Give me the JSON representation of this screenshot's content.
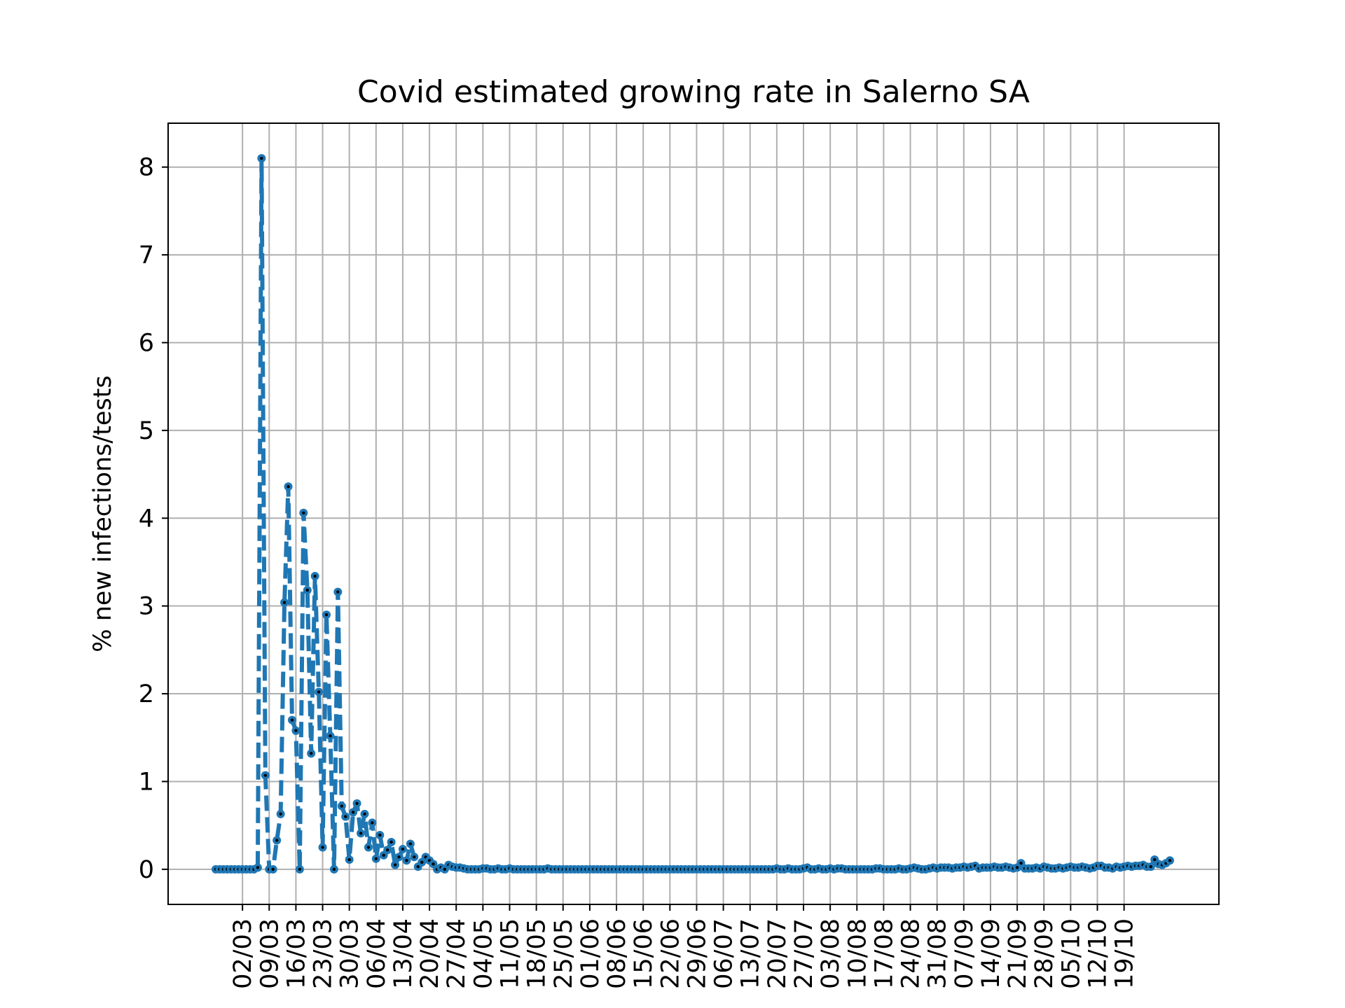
{
  "chart_data": {
    "type": "line",
    "title": "Covid estimated growing rate in Salerno SA",
    "xlabel": "",
    "ylabel": "% new infections/tests",
    "ylim": [
      -0.4,
      8.5
    ],
    "y_ticks": [
      0,
      1,
      2,
      3,
      4,
      5,
      6,
      7,
      8
    ],
    "x_tick_labels": [
      "02/03",
      "09/03",
      "16/03",
      "23/03",
      "30/03",
      "06/04",
      "13/04",
      "20/04",
      "27/04",
      "04/05",
      "11/05",
      "18/05",
      "25/05",
      "01/06",
      "08/06",
      "15/06",
      "22/06",
      "29/06",
      "06/07",
      "13/07",
      "20/07",
      "27/07",
      "03/08",
      "10/08",
      "17/08",
      "24/08",
      "31/08",
      "07/09",
      "14/09",
      "21/09",
      "28/09",
      "05/10",
      "12/10",
      "19/10"
    ],
    "grid": true,
    "line_style": "dashed",
    "marker": "circle",
    "color": "#1f77b4",
    "marker_center_color": "#000000",
    "x_start": "24/02",
    "x_end": "19/10",
    "series": [
      {
        "values": [
          0,
          0,
          0,
          0,
          0,
          0,
          0,
          0,
          0,
          0,
          0,
          0.02,
          8.1,
          1.07,
          0,
          0,
          0.33,
          0.63,
          3.04,
          4.36,
          1.7,
          1.58,
          0,
          4.06,
          3.18,
          1.32,
          3.34,
          2.02,
          0.25,
          2.9,
          1.52,
          0,
          3.16,
          0.72,
          0.6,
          0.11,
          0.65,
          0.75,
          0.41,
          0.63,
          0.25,
          0.53,
          0.12,
          0.39,
          0.16,
          0.22,
          0.31,
          0.05,
          0.14,
          0.23,
          0.1,
          0.29,
          0.14,
          0.03,
          0.08,
          0.14,
          0.1,
          0.06,
          0,
          0.02,
          0,
          0.05,
          0.03,
          0.02,
          0.02,
          0.01,
          0,
          0,
          0,
          0,
          0.01,
          0.01,
          0,
          0,
          0.01,
          0,
          0,
          0.01,
          0,
          0,
          0,
          0,
          0,
          0,
          0,
          0,
          0,
          0.01,
          0,
          0,
          0,
          0,
          0,
          0,
          0,
          0,
          0,
          0,
          0,
          0,
          0,
          0,
          0,
          0,
          0,
          0,
          0,
          0,
          0,
          0,
          0,
          0,
          0,
          0,
          0,
          0,
          0,
          0,
          0,
          0,
          0,
          0,
          0,
          0,
          0,
          0,
          0,
          0,
          0,
          0,
          0,
          0,
          0,
          0,
          0,
          0,
          0,
          0,
          0,
          0,
          0,
          0,
          0,
          0,
          0,
          0,
          0,
          0.01,
          0,
          0,
          0.01,
          0,
          0,
          0,
          0.01,
          0.02,
          0,
          0,
          0.01,
          0,
          0,
          0.01,
          0,
          0.01,
          0.01,
          0,
          0,
          0,
          0,
          0,
          0,
          0,
          0,
          0.01,
          0.01,
          0,
          0,
          0,
          0,
          0.01,
          0,
          0,
          0.01,
          0.02,
          0.01,
          0,
          0,
          0.01,
          0.02,
          0.01,
          0.02,
          0.02,
          0.02,
          0.01,
          0.02,
          0.02,
          0.03,
          0.02,
          0.03,
          0.04,
          0.01,
          0.02,
          0.02,
          0.02,
          0.03,
          0.02,
          0.02,
          0.03,
          0.02,
          0.01,
          0.02,
          0.07,
          0.01,
          0.01,
          0.01,
          0.02,
          0.01,
          0.03,
          0.02,
          0.01,
          0.01,
          0.02,
          0.01,
          0.02,
          0.03,
          0.02,
          0.02,
          0.03,
          0.02,
          0.01,
          0.02,
          0.04,
          0.04,
          0.02,
          0.02,
          0.01,
          0.03,
          0.02,
          0.03,
          0.04,
          0.03,
          0.04,
          0.04,
          0.05,
          0.03,
          0.03,
          0.11,
          0.06,
          0.05,
          0.07,
          0.1
        ]
      }
    ]
  }
}
